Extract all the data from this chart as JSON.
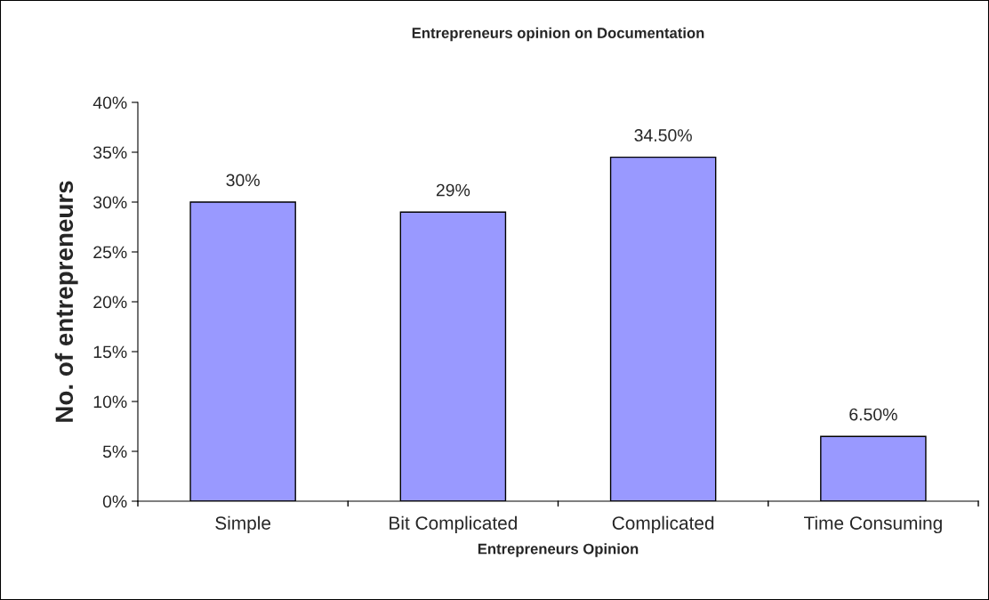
{
  "chart_data": {
    "type": "bar",
    "title": "Entrepreneurs opinion on Documentation",
    "xlabel": "Entrepreneurs Opinion",
    "ylabel": "No. of entrepreneurs",
    "categories": [
      "Simple",
      "Bit Complicated",
      "Complicated",
      "Time Consuming"
    ],
    "values": [
      30,
      29,
      34.5,
      6.5
    ],
    "value_labels": [
      "30%",
      "29%",
      "34.50%",
      "6.50%"
    ],
    "color": "#9999ff",
    "ylim": [
      0,
      40
    ],
    "yticks": [
      {
        "value": 0,
        "label": "0%"
      },
      {
        "value": 5,
        "label": "5%"
      },
      {
        "value": 10,
        "label": "10%"
      },
      {
        "value": 15,
        "label": "15%"
      },
      {
        "value": 20,
        "label": "20%"
      },
      {
        "value": 25,
        "label": "25%"
      },
      {
        "value": 30,
        "label": "30%"
      },
      {
        "value": 35,
        "label": "35%"
      },
      {
        "value": 40,
        "label": "40%"
      }
    ],
    "grid": false,
    "legend": false
  }
}
